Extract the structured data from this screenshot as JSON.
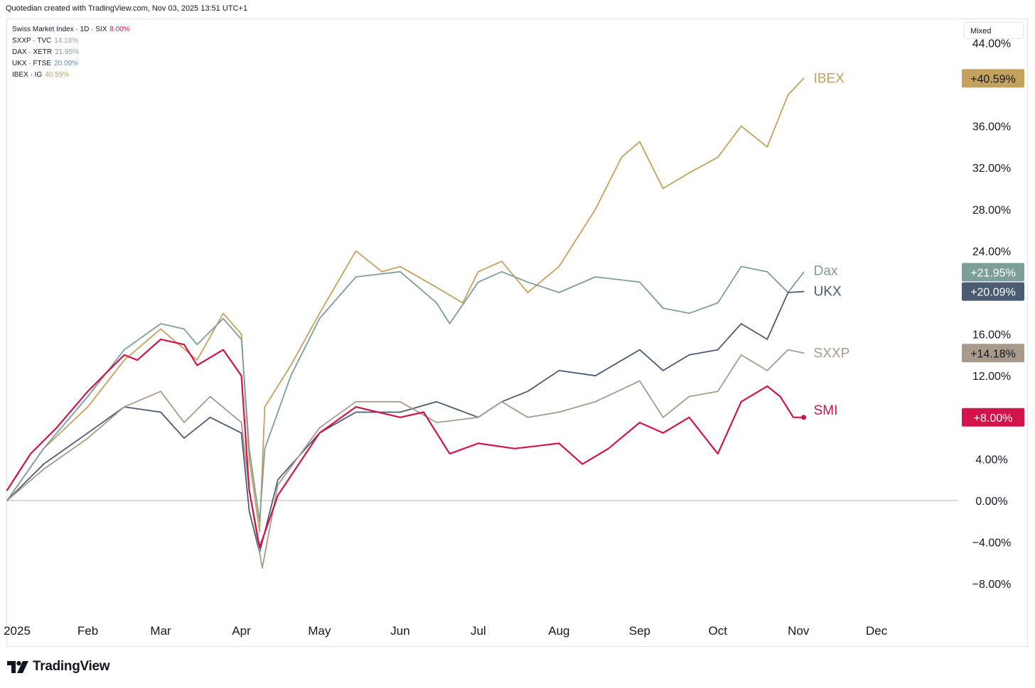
{
  "header": {
    "text": "Quotedian created with TradingView.com, Nov 03, 2025 13:51 UTC+1"
  },
  "scale_mode": {
    "label": "Mixed"
  },
  "footer": {
    "logo_text": "TradingView"
  },
  "legend": [
    {
      "label": "Swiss Market Index · 1D · SIX",
      "value": "8.00%",
      "color": "#d3134b"
    },
    {
      "label": "SXXP · TVC",
      "value": "14.18%",
      "color": "#a89b8c"
    },
    {
      "label": "DAX · XETR",
      "value": "21.95%",
      "color": "#7d9e99"
    },
    {
      "label": "UKX · FTSE",
      "value": "20.09%",
      "color": "#6e8fa2"
    },
    {
      "label": "IBEX · IG",
      "value": "40.59%",
      "color": "#c5a15e"
    }
  ],
  "chart_data": {
    "type": "line",
    "title": "",
    "xlabel": "",
    "ylabel": "",
    "x_ticks": [
      "2025",
      "Feb",
      "Mar",
      "Apr",
      "May",
      "Jun",
      "Jul",
      "Aug",
      "Sep",
      "Oct",
      "Nov",
      "Dec"
    ],
    "y_ticks": [
      "−8.00%",
      "−4.00%",
      "0.00%",
      "4.00%",
      "12.00%",
      "16.00%",
      "24.00%",
      "28.00%",
      "32.00%",
      "36.00%",
      "44.00%"
    ],
    "y_tick_values": [
      -8,
      -4,
      0,
      4,
      12,
      16,
      24,
      28,
      32,
      36,
      44
    ],
    "ylim": [
      -10,
      45
    ],
    "xlim": [
      "2025-01-01",
      "2025-12-31"
    ],
    "zero_line": true,
    "grid": false,
    "series": [
      {
        "name": "IBEX",
        "end_label": "IBEX",
        "badge": "+40.59%",
        "color": "#c5a15e",
        "badge_color": "#c5a15e",
        "points": [
          [
            "2025-01-01",
            0.0
          ],
          [
            "2025-01-15",
            5.0
          ],
          [
            "2025-02-01",
            9.0
          ],
          [
            "2025-02-15",
            13.5
          ],
          [
            "2025-03-01",
            16.5
          ],
          [
            "2025-03-15",
            13.5
          ],
          [
            "2025-03-25",
            18.0
          ],
          [
            "2025-04-01",
            16.0
          ],
          [
            "2025-04-04",
            4.0
          ],
          [
            "2025-04-08",
            -3.0
          ],
          [
            "2025-04-10",
            9.0
          ],
          [
            "2025-04-20",
            13.0
          ],
          [
            "2025-05-01",
            18.0
          ],
          [
            "2025-05-15",
            24.0
          ],
          [
            "2025-05-25",
            22.0
          ],
          [
            "2025-06-01",
            22.5
          ],
          [
            "2025-06-15",
            20.5
          ],
          [
            "2025-06-25",
            19.0
          ],
          [
            "2025-07-01",
            22.0
          ],
          [
            "2025-07-10",
            23.0
          ],
          [
            "2025-07-20",
            20.0
          ],
          [
            "2025-08-01",
            22.5
          ],
          [
            "2025-08-15",
            28.0
          ],
          [
            "2025-08-25",
            33.0
          ],
          [
            "2025-09-01",
            34.5
          ],
          [
            "2025-09-10",
            30.0
          ],
          [
            "2025-09-20",
            31.5
          ],
          [
            "2025-10-01",
            33.0
          ],
          [
            "2025-10-10",
            36.0
          ],
          [
            "2025-10-20",
            34.0
          ],
          [
            "2025-10-28",
            39.0
          ],
          [
            "2025-11-03",
            40.59
          ]
        ]
      },
      {
        "name": "Dax",
        "end_label": "Dax",
        "badge": "+21.95%",
        "color": "#7d9e99",
        "badge_color": "#7d9e99",
        "points": [
          [
            "2025-01-01",
            0.0
          ],
          [
            "2025-01-15",
            5.0
          ],
          [
            "2025-02-01",
            10.0
          ],
          [
            "2025-02-15",
            14.5
          ],
          [
            "2025-03-01",
            17.0
          ],
          [
            "2025-03-10",
            16.5
          ],
          [
            "2025-03-15",
            15.0
          ],
          [
            "2025-03-25",
            17.5
          ],
          [
            "2025-04-01",
            15.5
          ],
          [
            "2025-04-04",
            5.0
          ],
          [
            "2025-04-08",
            -2.0
          ],
          [
            "2025-04-10",
            5.0
          ],
          [
            "2025-04-20",
            12.0
          ],
          [
            "2025-05-01",
            17.5
          ],
          [
            "2025-05-15",
            21.5
          ],
          [
            "2025-06-01",
            22.0
          ],
          [
            "2025-06-15",
            19.0
          ],
          [
            "2025-06-20",
            17.0
          ],
          [
            "2025-07-01",
            21.0
          ],
          [
            "2025-07-10",
            22.0
          ],
          [
            "2025-07-20",
            21.0
          ],
          [
            "2025-08-01",
            20.0
          ],
          [
            "2025-08-15",
            21.5
          ],
          [
            "2025-09-01",
            21.0
          ],
          [
            "2025-09-10",
            18.5
          ],
          [
            "2025-09-20",
            18.0
          ],
          [
            "2025-10-01",
            19.0
          ],
          [
            "2025-10-10",
            22.5
          ],
          [
            "2025-10-20",
            22.0
          ],
          [
            "2025-10-28",
            20.0
          ],
          [
            "2025-11-03",
            21.95
          ]
        ]
      },
      {
        "name": "UKX",
        "end_label": "UKX",
        "badge": "+20.09%",
        "color": "#4a5b72",
        "badge_color": "#4a5b72",
        "points": [
          [
            "2025-01-01",
            0.0
          ],
          [
            "2025-01-15",
            3.5
          ],
          [
            "2025-02-01",
            6.5
          ],
          [
            "2025-02-15",
            9.0
          ],
          [
            "2025-03-01",
            8.5
          ],
          [
            "2025-03-10",
            6.0
          ],
          [
            "2025-03-20",
            8.0
          ],
          [
            "2025-04-01",
            6.5
          ],
          [
            "2025-04-04",
            -1.0
          ],
          [
            "2025-04-08",
            -5.0
          ],
          [
            "2025-04-15",
            2.0
          ],
          [
            "2025-05-01",
            6.5
          ],
          [
            "2025-05-15",
            8.5
          ],
          [
            "2025-06-01",
            8.5
          ],
          [
            "2025-06-15",
            9.5
          ],
          [
            "2025-07-01",
            8.0
          ],
          [
            "2025-07-10",
            9.5
          ],
          [
            "2025-07-20",
            10.5
          ],
          [
            "2025-08-01",
            12.5
          ],
          [
            "2025-08-15",
            12.0
          ],
          [
            "2025-09-01",
            14.5
          ],
          [
            "2025-09-10",
            12.5
          ],
          [
            "2025-09-20",
            14.0
          ],
          [
            "2025-10-01",
            14.5
          ],
          [
            "2025-10-10",
            17.0
          ],
          [
            "2025-10-20",
            15.5
          ],
          [
            "2025-10-28",
            20.0
          ],
          [
            "2025-11-03",
            20.09
          ]
        ]
      },
      {
        "name": "SXXP",
        "end_label": "SXXP",
        "badge": "+14.18%",
        "color": "#a89b8c",
        "badge_color": "#a89b8c",
        "points": [
          [
            "2025-01-01",
            0.0
          ],
          [
            "2025-01-15",
            3.0
          ],
          [
            "2025-02-01",
            6.0
          ],
          [
            "2025-02-15",
            9.0
          ],
          [
            "2025-03-01",
            10.5
          ],
          [
            "2025-03-10",
            7.5
          ],
          [
            "2025-03-20",
            10.0
          ],
          [
            "2025-04-01",
            7.5
          ],
          [
            "2025-04-04",
            1.0
          ],
          [
            "2025-04-09",
            -6.5
          ],
          [
            "2025-04-15",
            1.5
          ],
          [
            "2025-05-01",
            7.0
          ],
          [
            "2025-05-15",
            9.5
          ],
          [
            "2025-06-01",
            9.5
          ],
          [
            "2025-06-15",
            7.5
          ],
          [
            "2025-07-01",
            8.0
          ],
          [
            "2025-07-10",
            9.5
          ],
          [
            "2025-07-20",
            8.0
          ],
          [
            "2025-08-01",
            8.5
          ],
          [
            "2025-08-15",
            9.5
          ],
          [
            "2025-09-01",
            11.5
          ],
          [
            "2025-09-10",
            8.0
          ],
          [
            "2025-09-20",
            10.0
          ],
          [
            "2025-10-01",
            10.5
          ],
          [
            "2025-10-10",
            14.0
          ],
          [
            "2025-10-20",
            12.5
          ],
          [
            "2025-10-28",
            14.5
          ],
          [
            "2025-11-03",
            14.18
          ]
        ]
      },
      {
        "name": "SMI",
        "end_label": "SMI",
        "badge": "+8.00%",
        "color": "#d3134b",
        "badge_color": "#d3134b",
        "points": [
          [
            "2025-01-01",
            1.0
          ],
          [
            "2025-01-10",
            4.5
          ],
          [
            "2025-01-20",
            7.0
          ],
          [
            "2025-02-01",
            10.5
          ],
          [
            "2025-02-15",
            14.0
          ],
          [
            "2025-02-20",
            13.5
          ],
          [
            "2025-03-01",
            15.5
          ],
          [
            "2025-03-10",
            15.0
          ],
          [
            "2025-03-15",
            13.0
          ],
          [
            "2025-03-25",
            14.5
          ],
          [
            "2025-04-01",
            12.0
          ],
          [
            "2025-04-04",
            1.0
          ],
          [
            "2025-04-08",
            -4.5
          ],
          [
            "2025-04-15",
            0.5
          ],
          [
            "2025-05-01",
            6.5
          ],
          [
            "2025-05-15",
            9.0
          ],
          [
            "2025-06-01",
            8.0
          ],
          [
            "2025-06-10",
            8.5
          ],
          [
            "2025-06-20",
            4.5
          ],
          [
            "2025-07-01",
            5.5
          ],
          [
            "2025-07-15",
            5.0
          ],
          [
            "2025-08-01",
            5.5
          ],
          [
            "2025-08-10",
            3.5
          ],
          [
            "2025-08-20",
            5.0
          ],
          [
            "2025-09-01",
            7.5
          ],
          [
            "2025-09-10",
            6.5
          ],
          [
            "2025-09-20",
            8.0
          ],
          [
            "2025-10-01",
            4.5
          ],
          [
            "2025-10-10",
            9.5
          ],
          [
            "2025-10-20",
            11.0
          ],
          [
            "2025-10-25",
            10.0
          ],
          [
            "2025-10-30",
            8.0
          ],
          [
            "2025-11-03",
            8.0
          ]
        ]
      }
    ]
  }
}
